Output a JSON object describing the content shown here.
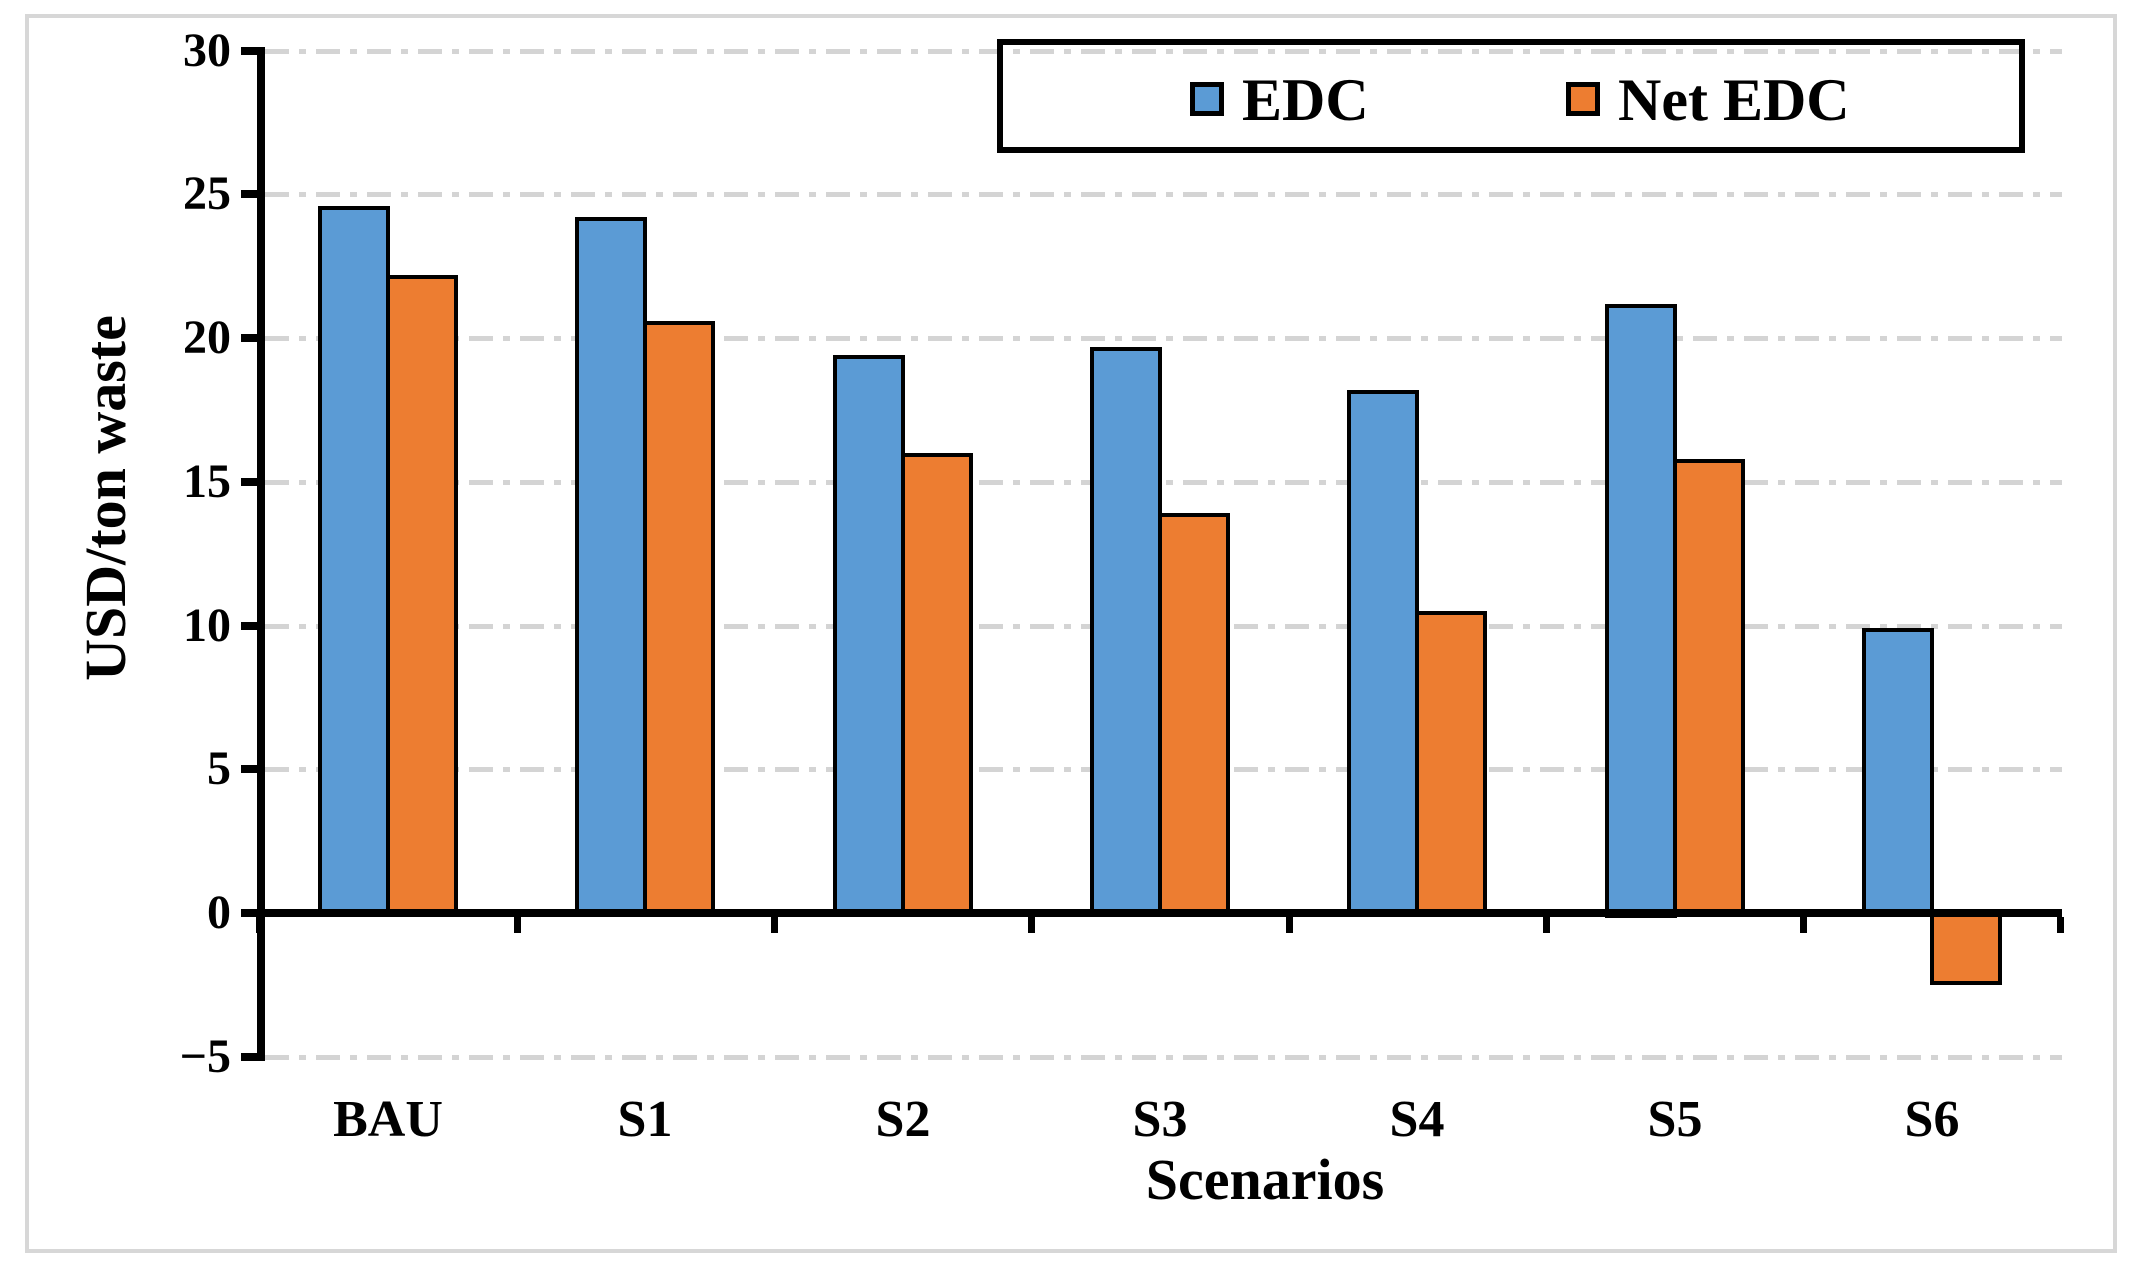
{
  "chart_data": {
    "type": "bar",
    "title": "",
    "categories": [
      "BAU",
      "S1",
      "S2",
      "S3",
      "S4",
      "S5",
      "S6"
    ],
    "series": [
      {
        "name": "EDC",
        "color": "#5B9BD5",
        "values": [
          24.6,
          24.2,
          19.4,
          19.7,
          18.2,
          21.2,
          9.9
        ]
      },
      {
        "name": "Net EDC",
        "color": "#ED7D31",
        "values": [
          22.2,
          20.6,
          16.0,
          13.9,
          10.5,
          15.8,
          -2.5
        ]
      }
    ],
    "xlabel": "Scenarios",
    "ylabel": "USD/ton waste",
    "ylim": [
      -5,
      30
    ],
    "yticks": [
      30,
      25,
      20,
      15,
      10,
      5,
      0,
      -5
    ],
    "ytick_labels": [
      "30",
      "25",
      "20",
      "15",
      "10",
      "5",
      "0",
      "−5"
    ],
    "grid": "horizontal dash-dot gridlines every 5 units, none at 0",
    "legend_position": "top-right inside plot, black-bordered box",
    "bar_edge_color": "#000000",
    "background_color": "#ffffff",
    "frame_color": "#d7d7d7"
  }
}
